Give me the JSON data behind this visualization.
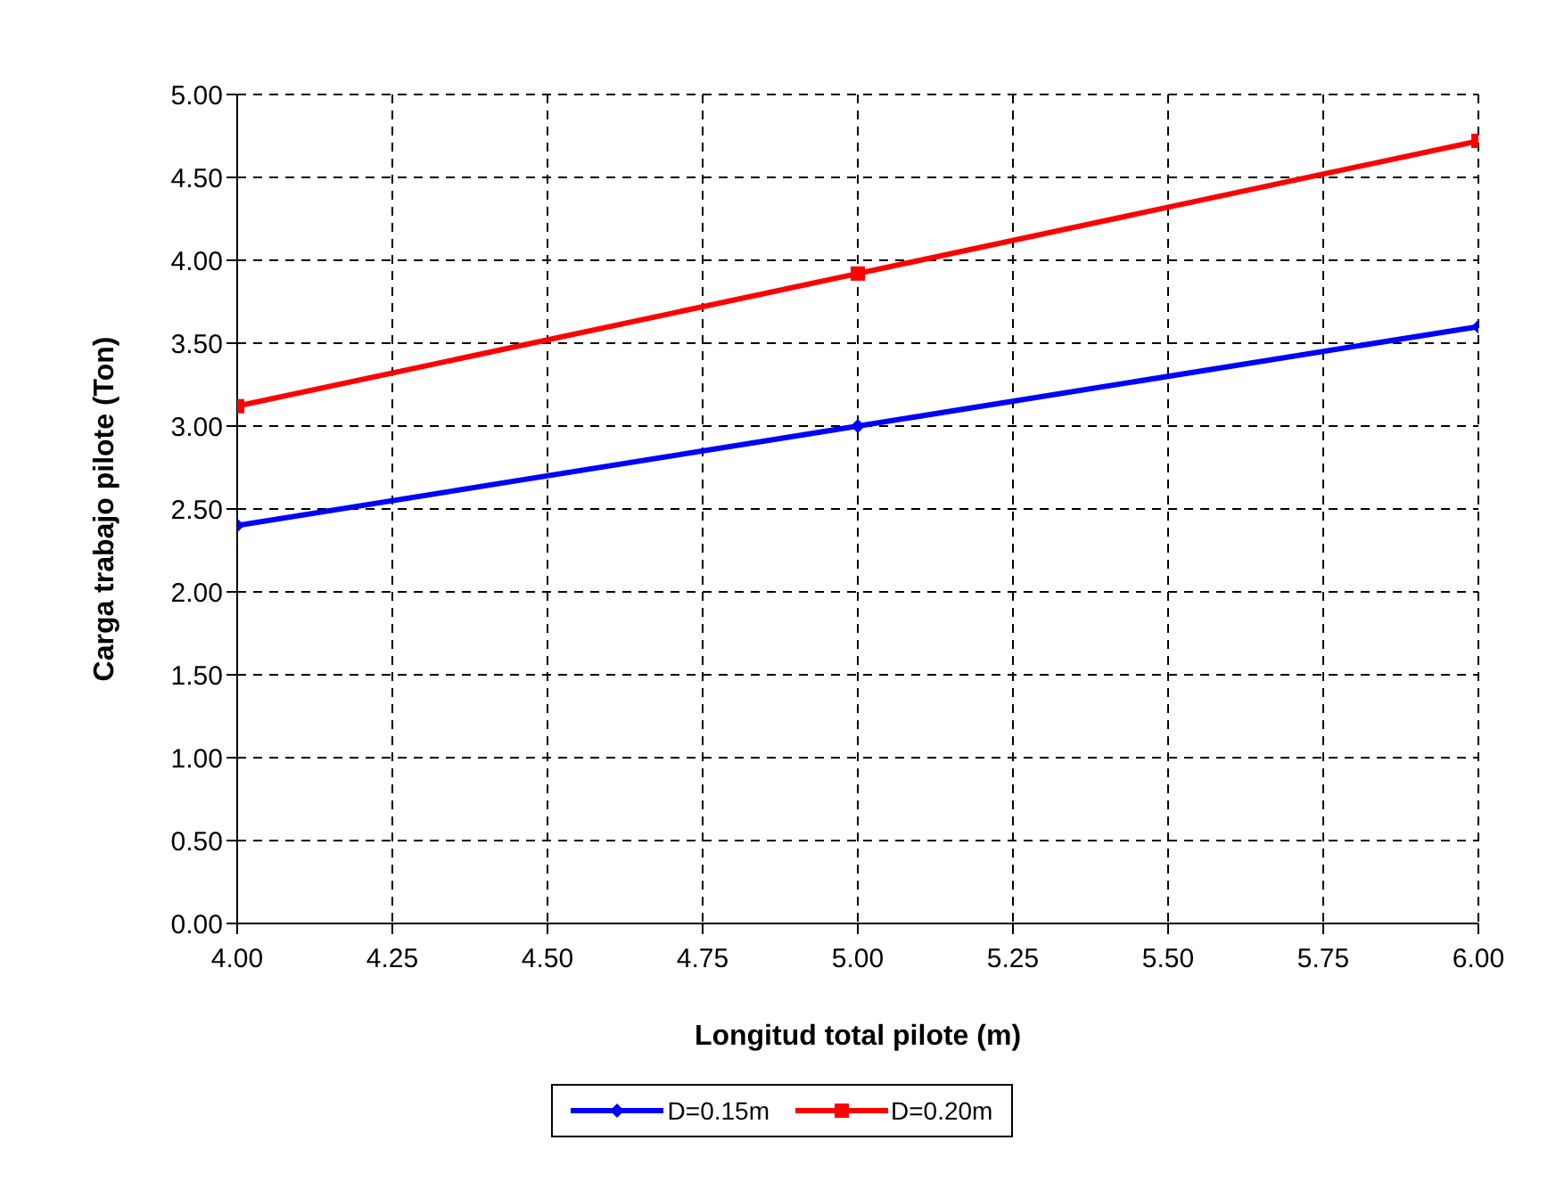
{
  "chart_data": {
    "type": "line",
    "xlabel": "Longitud total pilote (m)",
    "ylabel": "Carga trabajo pilote (Ton)",
    "x": [
      4,
      5,
      6
    ],
    "series": [
      {
        "name": "D=0.15m",
        "color": "#0000ff",
        "marker": "diamond",
        "values": [
          2.4,
          3.0,
          3.6
        ]
      },
      {
        "name": "D=0.20m",
        "color": "#ff0000",
        "marker": "square",
        "values": [
          3.12,
          3.92,
          4.72
        ]
      }
    ],
    "xlim": [
      4,
      6
    ],
    "xticks": [
      {
        "value": 4,
        "label": "4.00"
      },
      {
        "value": 4.25,
        "label": "4.25"
      },
      {
        "value": 4.5,
        "label": "4.50"
      },
      {
        "value": 4.75,
        "label": "4.75"
      },
      {
        "value": 5,
        "label": "5.00"
      },
      {
        "value": 5.25,
        "label": "5.25"
      },
      {
        "value": 5.5,
        "label": "5.50"
      },
      {
        "value": 5.75,
        "label": "5.75"
      },
      {
        "value": 6,
        "label": "6.00"
      }
    ],
    "ylim": [
      0,
      5
    ],
    "yticks": [
      {
        "value": 0,
        "label": "0.00"
      },
      {
        "value": 0.5,
        "label": "0.50"
      },
      {
        "value": 1,
        "label": "1.00"
      },
      {
        "value": 1.5,
        "label": "1.50"
      },
      {
        "value": 2,
        "label": "2.00"
      },
      {
        "value": 2.5,
        "label": "2.50"
      },
      {
        "value": 3,
        "label": "3.00"
      },
      {
        "value": 3.5,
        "label": "3.50"
      },
      {
        "value": 4,
        "label": "4.00"
      },
      {
        "value": 4.5,
        "label": "4.50"
      },
      {
        "value": 5,
        "label": "5.00"
      }
    ],
    "grid": true,
    "legend": "bottom",
    "line_style": "solid"
  }
}
